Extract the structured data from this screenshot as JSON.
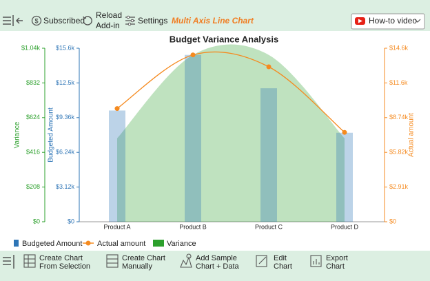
{
  "toolbar": {
    "subscribed": "Subscribed",
    "reload": [
      "Reload",
      "Add-in"
    ],
    "settings": "Settings",
    "chart_name": "Multi Axis Line Chart",
    "video": "How-to video"
  },
  "bottom_toolbar": [
    [
      "Create Chart",
      "From Selection"
    ],
    [
      "Create Chart",
      "Manually"
    ],
    [
      "Add Sample",
      "Chart + Data"
    ],
    [
      "Edit",
      "Chart"
    ],
    [
      "Export",
      "Chart"
    ]
  ],
  "chart_data": {
    "type": "combo",
    "title": "Budget Variance Analysis",
    "categories": [
      "Product A",
      "Product B",
      "Product C",
      "Product D"
    ],
    "series": [
      {
        "name": "Budgeted Amount",
        "type": "bar",
        "color": "#2e75b6",
        "values": [
          10000,
          15000,
          12000,
          8000
        ]
      },
      {
        "name": "Actual amount",
        "type": "line",
        "axis": "y2",
        "color": "#f58a1f",
        "values": [
          9500,
          14000,
          13000,
          7500
        ]
      },
      {
        "name": "Variance",
        "type": "area",
        "axis": "y3",
        "color": "#2ca02c",
        "values": [
          500,
          1000,
          1000,
          500
        ]
      }
    ],
    "ylabel": "Budgeted Amount",
    "ylim": [
      0,
      15600
    ],
    "yticks": [
      {
        "value": 0,
        "label": "$0"
      },
      {
        "value": 3120,
        "label": "$3.12k"
      },
      {
        "value": 6240,
        "label": "$6.24k"
      },
      {
        "value": 9360,
        "label": "$9.36k"
      },
      {
        "value": 12480,
        "label": "$12.5k"
      },
      {
        "value": 15600,
        "label": "$15.6k"
      }
    ],
    "y2label": "Actual amount",
    "y2lim": [
      0,
      14560
    ],
    "y2ticks": [
      {
        "value": 0,
        "label": "$0"
      },
      {
        "value": 2912,
        "label": "$2.91k"
      },
      {
        "value": 5824,
        "label": "$5.82k"
      },
      {
        "value": 8736,
        "label": "$8.74k"
      },
      {
        "value": 11648,
        "label": "$11.6k"
      },
      {
        "value": 14560,
        "label": "$14.6k"
      }
    ],
    "y3label": "Variance",
    "y3lim": [
      0,
      1040
    ],
    "y3ticks": [
      {
        "value": 0,
        "label": "$0"
      },
      {
        "value": 208,
        "label": "$208"
      },
      {
        "value": 416,
        "label": "$416"
      },
      {
        "value": 624,
        "label": "$624"
      },
      {
        "value": 832,
        "label": "$832"
      },
      {
        "value": 1040,
        "label": "$1.04k"
      }
    ],
    "legend": "bottom-left"
  }
}
